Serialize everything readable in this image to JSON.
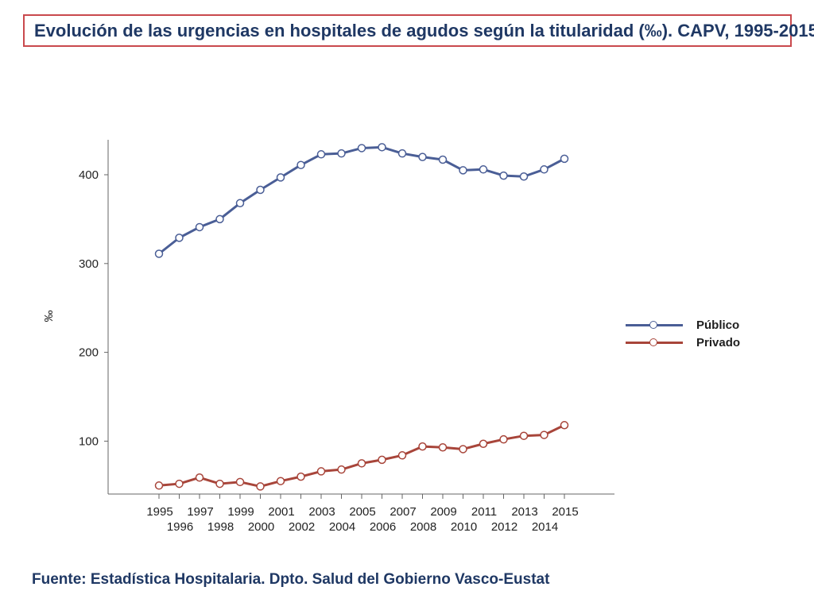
{
  "title": "Evolución de las urgencias en hospitales de agudos según la titularidad (‰). CAPV, 1995-2015",
  "source": "Fuente: Estadística Hospitalaria. Dpto. Salud del Gobierno Vasco-Eustat",
  "chart_data": {
    "type": "line",
    "title": "Evolución de las urgencias en hospitales de agudos según la titularidad (‰). CAPV, 1995-2015",
    "xlabel": "",
    "ylabel": "‰",
    "ylim": [
      40,
      440
    ],
    "yticks": [
      100,
      200,
      300,
      400
    ],
    "x": [
      "1995",
      "1996",
      "1997",
      "1998",
      "1999",
      "2000",
      "2001",
      "2002",
      "2003",
      "2004",
      "2005",
      "2006",
      "2007",
      "2008",
      "2009",
      "2010",
      "2011",
      "2012",
      "2013",
      "2014",
      "2015"
    ],
    "series": [
      {
        "name": "Público",
        "color": "#4a5e96",
        "values": [
          311,
          329,
          341,
          350,
          368,
          383,
          397,
          411,
          423,
          424,
          430,
          431,
          424,
          420,
          417,
          405,
          406,
          399,
          398,
          406,
          418
        ]
      },
      {
        "name": "Privado",
        "color": "#a8453a",
        "values": [
          50,
          52,
          59,
          52,
          54,
          49,
          55,
          60,
          66,
          68,
          75,
          79,
          84,
          94,
          93,
          91,
          97,
          102,
          106,
          107,
          118
        ]
      }
    ],
    "legend": "right",
    "grid": false
  }
}
